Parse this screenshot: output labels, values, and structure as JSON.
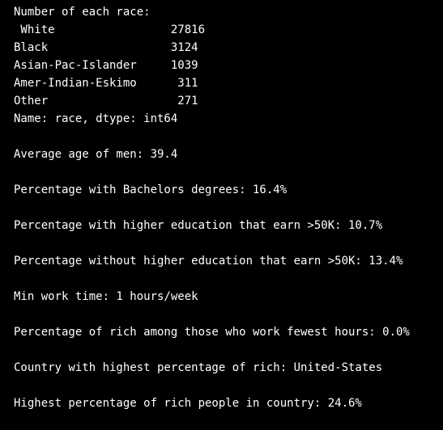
{
  "output": {
    "race_header": "Number of each race:",
    "race_rows": [
      " White                 27816",
      "Black                  3124",
      "Asian-Pac-Islander     1039",
      "Amer-Indian-Eskimo      311",
      "Other                   271"
    ],
    "race_dtype": "Name: race, dtype: int64",
    "avg_age_men": "Average age of men: 39.4",
    "pct_bachelors": "Percentage with Bachelors degrees: 16.4%",
    "pct_higher_edu_rich": "Percentage with higher education that earn >50K: 10.7%",
    "pct_lower_edu_rich": "Percentage without higher education that earn >50K: 13.4%",
    "min_work_time": "Min work time: 1 hours/week",
    "pct_rich_min_hours": "Percentage of rich among those who work fewest hours: 0.0%",
    "top_country": "Country with highest percentage of rich: United-States",
    "top_country_pct": "Highest percentage of rich people in country: 24.6%"
  }
}
